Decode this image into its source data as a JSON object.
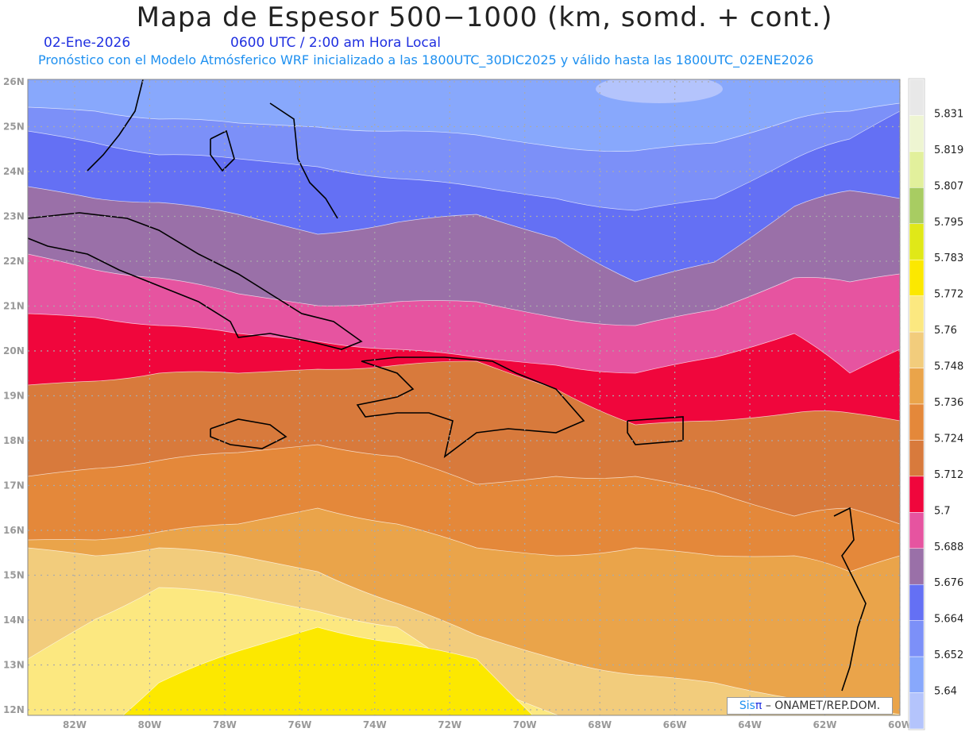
{
  "header": {
    "title": "Mapa de Espesor 500−1000 (km, somd. + cont.)",
    "date": "02-Ene-2026",
    "time": "0600 UTC / 2:00 am Hora Local",
    "subtitle": "Pronóstico con el Modelo Atmósferico WRF inicializado a las 1800UTC_30DIC2025 y válido hasta las  1800UTC_02ENE2026"
  },
  "axes": {
    "lat_labels": [
      "26N",
      "25N",
      "24N",
      "23N",
      "22N",
      "21N",
      "20N",
      "19N",
      "18N",
      "17N",
      "16N",
      "15N",
      "14N",
      "13N",
      "12N"
    ],
    "lon_labels": [
      "82W",
      "80W",
      "78W",
      "76W",
      "74W",
      "72W",
      "70W",
      "68W",
      "66W",
      "64W",
      "62W",
      "60W"
    ]
  },
  "colorbar": {
    "colors": [
      "#e8e8e8",
      "#eef5d2",
      "#e2f09c",
      "#a8cc62",
      "#e0e818",
      "#fce800",
      "#fce880",
      "#f2cc7c",
      "#eaa44a",
      "#e4883a",
      "#d87a3c",
      "#f0063c",
      "#e654a0",
      "#9a70a8",
      "#6470f4",
      "#7c90f8",
      "#88a8fc",
      "#b4c4fc"
    ],
    "labels": [
      "5.831",
      "5.819",
      "5.807",
      "5.795",
      "5.783",
      "5.772",
      "5.76",
      "5.748",
      "5.736",
      "5.724",
      "5.712",
      "5.7",
      "5.688",
      "5.676",
      "5.664",
      "5.652",
      "5.64"
    ]
  },
  "credit": {
    "sis": "Sis",
    "pi": "π",
    "rest": "– ONAMET/REP.DOM."
  }
}
